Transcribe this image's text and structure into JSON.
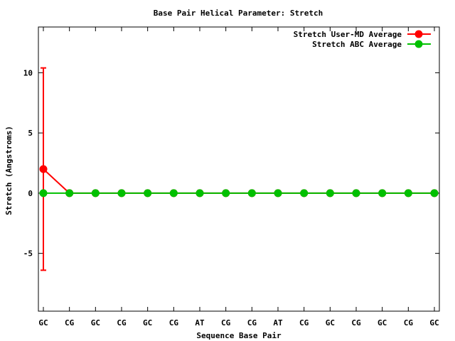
{
  "chart_data": {
    "type": "line",
    "title": "Base Pair Helical Parameter: Stretch",
    "xlabel": "Sequence Base Pair",
    "ylabel": "Stretch (Angstroms)",
    "categories": [
      "GC",
      "CG",
      "GC",
      "CG",
      "GC",
      "CG",
      "AT",
      "CG",
      "CG",
      "AT",
      "CG",
      "GC",
      "CG",
      "GC",
      "CG",
      "GC"
    ],
    "ylim": [
      -9.8,
      13.8
    ],
    "yticks": [
      -5,
      0,
      5,
      10
    ],
    "grid": false,
    "legend_position": "top-right",
    "series": [
      {
        "name": "Stretch User-MD Average",
        "color": "#ff0000",
        "values": [
          2.0,
          0,
          0,
          0,
          0,
          0,
          0,
          0,
          0,
          0,
          0,
          0,
          0,
          0,
          0,
          0
        ],
        "error_bars": [
          {
            "index": 0,
            "low": -6.4,
            "high": 10.4
          }
        ]
      },
      {
        "name": "Stretch ABC Average",
        "color": "#00c000",
        "values": [
          0,
          0,
          0,
          0,
          0,
          0,
          0,
          0,
          0,
          0,
          0,
          0,
          0,
          0,
          0,
          0
        ]
      }
    ]
  }
}
